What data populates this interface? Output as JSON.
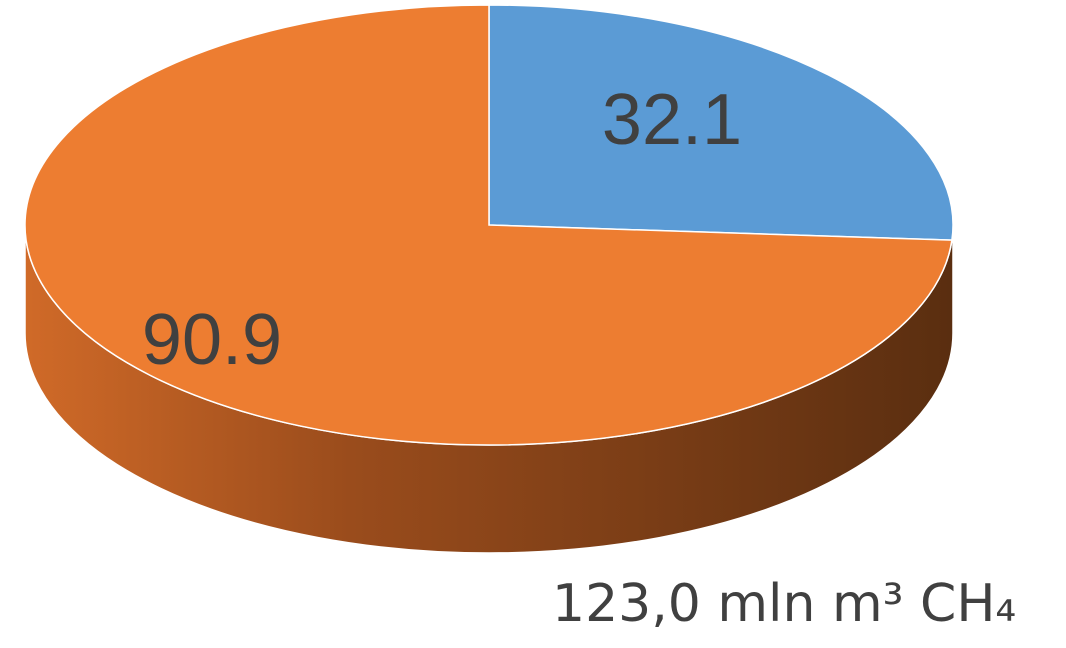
{
  "chart_data": {
    "type": "pie",
    "style": "3d",
    "slices": [
      {
        "value": 32.1,
        "label": "32.1",
        "color": "#5B9BD5"
      },
      {
        "value": 90.9,
        "label": "90.9",
        "color": "#ED7D31"
      }
    ],
    "total_label": "123,0 mln m³ CH₄"
  }
}
